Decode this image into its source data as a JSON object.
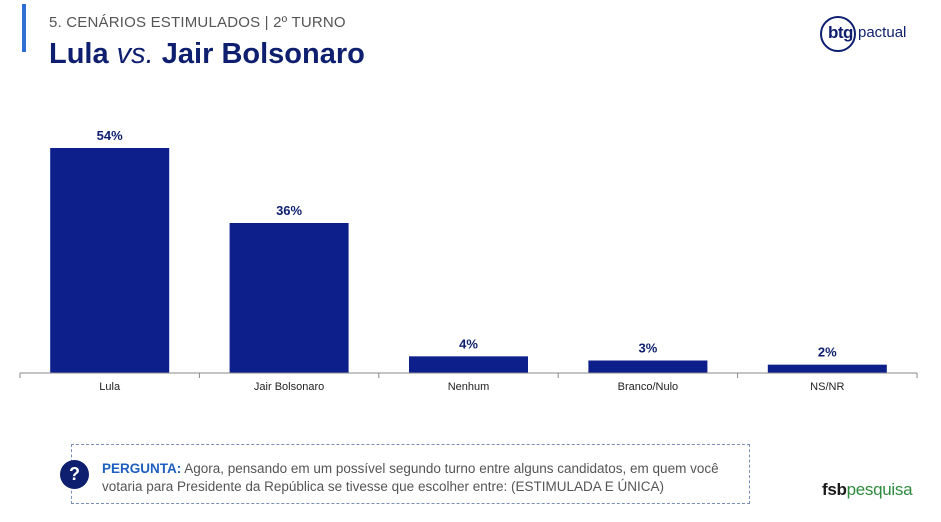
{
  "header": {
    "subtitle": "5. CENÁRIOS ESTIMULADOS | 2º TURNO",
    "title_part1": "Lula ",
    "title_vs": "vs.",
    "title_part2": " Jair Bolsonaro"
  },
  "logos": {
    "btg_main": "btg",
    "btg_secondary": "pactual",
    "fsb_main": "fsb",
    "fsb_secondary": "pesquisa"
  },
  "chart_data": {
    "type": "bar",
    "categories": [
      "Lula",
      "Jair Bolsonaro",
      "Nenhum",
      "Branco/Nulo",
      "NS/NR"
    ],
    "values": [
      54,
      36,
      4,
      3,
      2
    ],
    "value_labels": [
      "54%",
      "36%",
      "4%",
      "3%",
      "2%"
    ],
    "ylim": [
      0,
      54
    ],
    "bar_color": "#0d1f8a",
    "label_color": "#0d1f6e",
    "grid": false,
    "xlabel": "",
    "ylabel": ""
  },
  "question": {
    "icon": "?",
    "label": "PERGUNTA:",
    "text": " Agora, pensando em um possível segundo turno entre alguns candidatos, em quem você votaria para Presidente da República se tivesse que escolher entre: (ESTIMULADA E ÚNICA)"
  },
  "colors": {
    "navy": "#0d1f6e",
    "accent_blue": "#2f6fd1",
    "fsb_green": "#2e8b3e"
  }
}
